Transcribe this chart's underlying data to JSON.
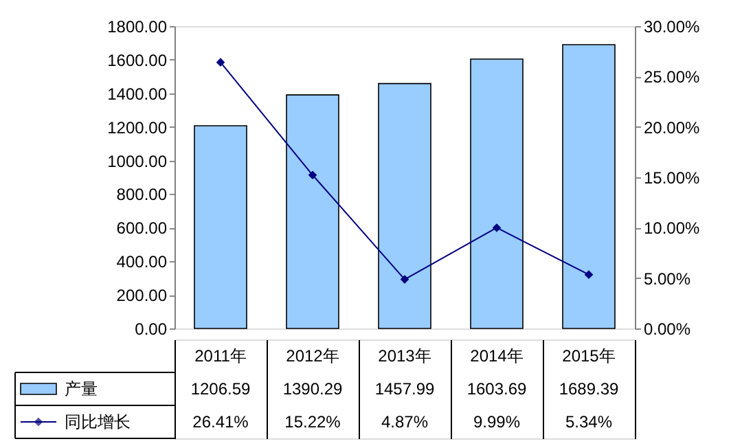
{
  "chart_data": {
    "type": "bar",
    "categories": [
      "2011年",
      "2012年",
      "2013年",
      "2014年",
      "2015年"
    ],
    "series": [
      {
        "name": "产量",
        "color": "#99ccff",
        "values": [
          1206.59,
          1390.29,
          1457.99,
          1603.69,
          1689.39
        ],
        "value_labels": [
          "1206.59",
          "1390.29",
          "1457.99",
          "1603.69",
          "1689.39"
        ]
      },
      {
        "name": "同比增长",
        "type": "line",
        "axis": "y2",
        "color": "#000080",
        "values": [
          26.41,
          15.22,
          4.87,
          9.99,
          5.34
        ],
        "value_labels": [
          "26.41%",
          "15.22%",
          "4.87%",
          "9.99%",
          "5.34%"
        ]
      }
    ],
    "marker": "diamond",
    "legend": "bottom left",
    "ylim": [
      0,
      1800
    ],
    "yticks": [
      {
        "value": 0,
        "label": "0.00"
      },
      {
        "value": 200,
        "label": "200.00"
      },
      {
        "value": 400,
        "label": "400.00"
      },
      {
        "value": 600,
        "label": "600.00"
      },
      {
        "value": 800,
        "label": "800.00"
      },
      {
        "value": 1000,
        "label": "1000.00"
      },
      {
        "value": 1200,
        "label": "1200.00"
      },
      {
        "value": 1400,
        "label": "1400.00"
      },
      {
        "value": 1600,
        "label": "1600.00"
      },
      {
        "value": 1800,
        "label": "1800.00"
      }
    ],
    "y2lim": [
      0,
      30
    ],
    "y2ticks": [
      {
        "value": 0,
        "label": "0.00%"
      },
      {
        "value": 5,
        "label": "5.00%"
      },
      {
        "value": 10,
        "label": "10.00%"
      },
      {
        "value": 15,
        "label": "15.00%"
      },
      {
        "value": 20,
        "label": "20.00%"
      },
      {
        "value": 25,
        "label": "25.00%"
      },
      {
        "value": 30,
        "label": "30.00%"
      }
    ],
    "grid": false
  }
}
